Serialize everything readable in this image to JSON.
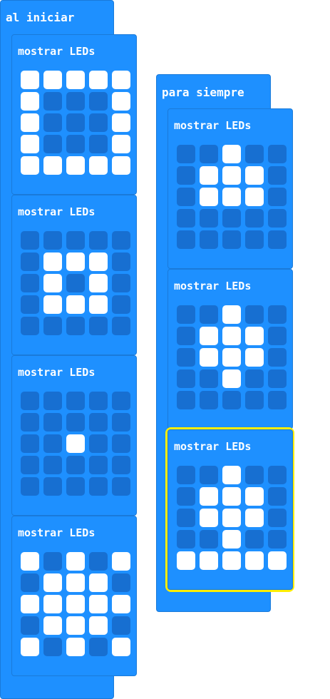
{
  "start": {
    "label": "al iniciar",
    "blocks": [
      {
        "label": "mostrar LEDs",
        "pattern": [
          "11111",
          "10001",
          "10001",
          "10001",
          "11111"
        ]
      },
      {
        "label": "mostrar LEDs",
        "pattern": [
          "00000",
          "01110",
          "01010",
          "01110",
          "00000"
        ]
      },
      {
        "label": "mostrar LEDs",
        "pattern": [
          "00000",
          "00000",
          "00100",
          "00000",
          "00000"
        ]
      },
      {
        "label": "mostrar LEDs",
        "pattern": [
          "10101",
          "01110",
          "11111",
          "01110",
          "10101"
        ]
      }
    ]
  },
  "forever": {
    "label": "para siempre",
    "blocks": [
      {
        "label": "mostrar LEDs",
        "pattern": [
          "00100",
          "01110",
          "01110",
          "00000",
          "00000"
        ]
      },
      {
        "label": "mostrar LEDs",
        "pattern": [
          "00100",
          "01110",
          "01110",
          "00100",
          "00000"
        ],
        "selected": true
      },
      {
        "label": "mostrar LEDs",
        "pattern": [
          "00100",
          "01110",
          "01110",
          "00100",
          "11111"
        ]
      }
    ]
  },
  "colors": {
    "block": "#1e90ff",
    "led_off": "#176fd1",
    "led_on": "#ffffff",
    "selection": "#ffee00"
  }
}
